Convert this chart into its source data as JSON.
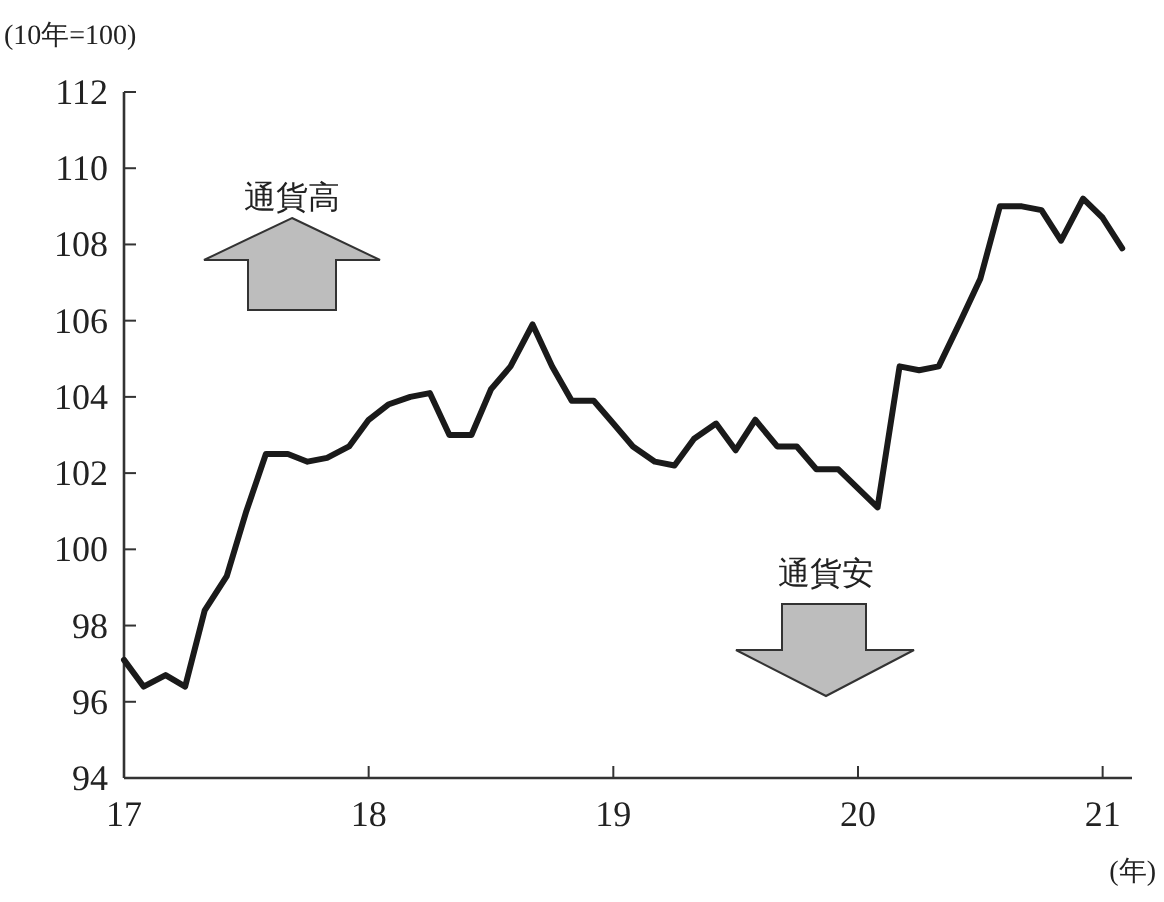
{
  "chart_data": {
    "type": "line",
    "ylabel": "(10年=100)",
    "xlabel": "(年)",
    "annotations": [
      "通貨高",
      "通貨安"
    ],
    "x": [
      17,
      17.08,
      17.17,
      17.25,
      17.33,
      17.42,
      17.5,
      17.58,
      17.67,
      17.75,
      17.83,
      17.92,
      18,
      18.08,
      18.17,
      18.25,
      18.33,
      18.42,
      18.5,
      18.58,
      18.67,
      18.75,
      18.83,
      18.92,
      19,
      19.08,
      19.17,
      19.25,
      19.33,
      19.42,
      19.5,
      19.58,
      19.67,
      19.75,
      19.83,
      19.92,
      20,
      20.08,
      20.17,
      20.25,
      20.33,
      20.42,
      20.5,
      20.58,
      20.67,
      20.75,
      20.83,
      20.92,
      21,
      21.08
    ],
    "series": [
      {
        "color": "#1a1a1a",
        "values": [
          97.1,
          96.4,
          96.7,
          96.4,
          98.4,
          99.3,
          101.0,
          102.5,
          102.5,
          102.3,
          102.4,
          102.7,
          103.4,
          103.8,
          104.0,
          104.1,
          103.0,
          103.0,
          104.2,
          104.8,
          105.9,
          104.8,
          103.9,
          103.9,
          103.3,
          102.7,
          102.3,
          102.2,
          102.9,
          103.3,
          102.6,
          103.4,
          102.7,
          102.7,
          102.1,
          102.1,
          101.6,
          101.1,
          104.8,
          104.7,
          104.8,
          106.0,
          107.1,
          109.0,
          109.0,
          108.9,
          108.1,
          109.2,
          108.7,
          107.9
        ]
      }
    ],
    "xlim": [
      17,
      21.12
    ],
    "ylim": [
      94,
      112
    ],
    "xticks": [
      17,
      18,
      19,
      20,
      21
    ],
    "yticks": [
      94,
      96,
      98,
      100,
      102,
      104,
      106,
      108,
      110,
      112
    ],
    "grid": false
  }
}
